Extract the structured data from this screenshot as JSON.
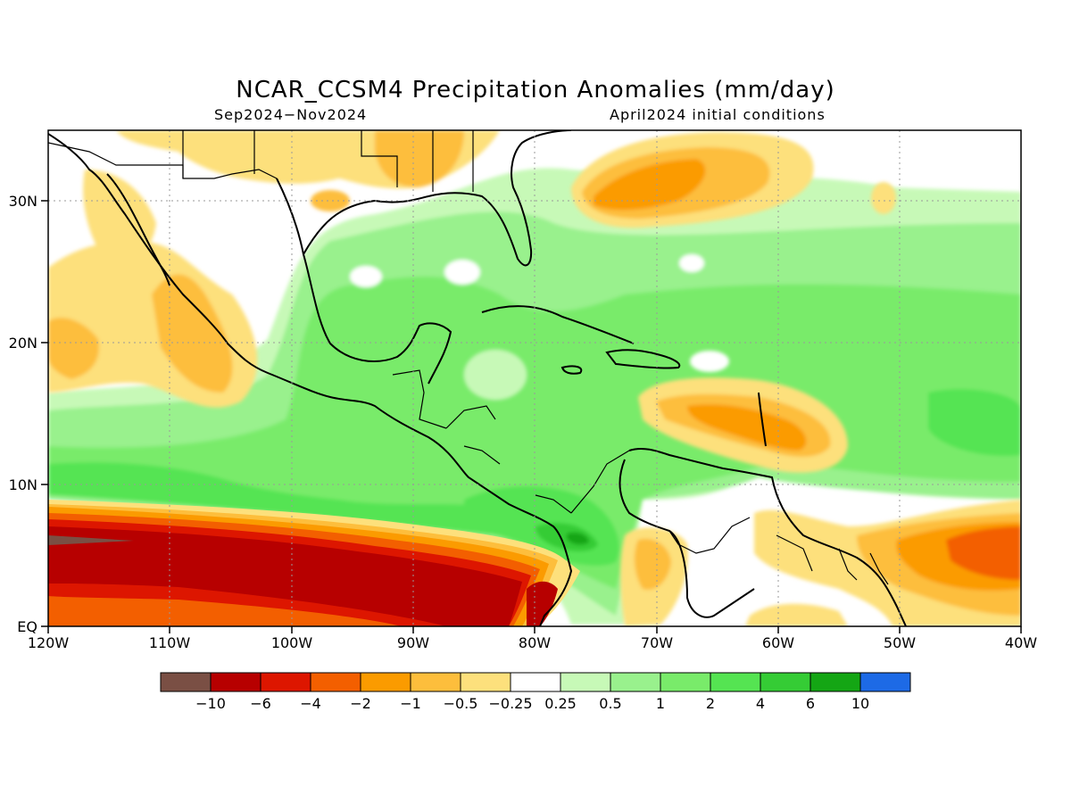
{
  "title": "NCAR_CCSM4 Precipitation Anomalies (mm/day)",
  "subtitle_left": "Sep2024−Nov2024",
  "subtitle_right": "April2024 initial conditions",
  "lat_ticks": [
    "EQ",
    "10N",
    "20N",
    "30N"
  ],
  "lon_ticks": [
    "120W",
    "110W",
    "100W",
    "90W",
    "80W",
    "70W",
    "60W",
    "50W",
    "40W"
  ],
  "colorbar": {
    "colors": [
      "#7a4f44",
      "#b70000",
      "#dd1600",
      "#f35f00",
      "#fb9b00",
      "#fdbe3c",
      "#fde07c",
      "#ffffff",
      "#c7f9b7",
      "#99f18d",
      "#79eb6a",
      "#55e452",
      "#35cc35",
      "#14a614",
      "#1d6ae6"
    ],
    "labels": [
      "−10",
      "−6",
      "−4",
      "−2",
      "−1",
      "−0.5",
      "−0.25",
      "0.25",
      "0.5",
      "1",
      "2",
      "4",
      "6",
      "10"
    ]
  }
}
